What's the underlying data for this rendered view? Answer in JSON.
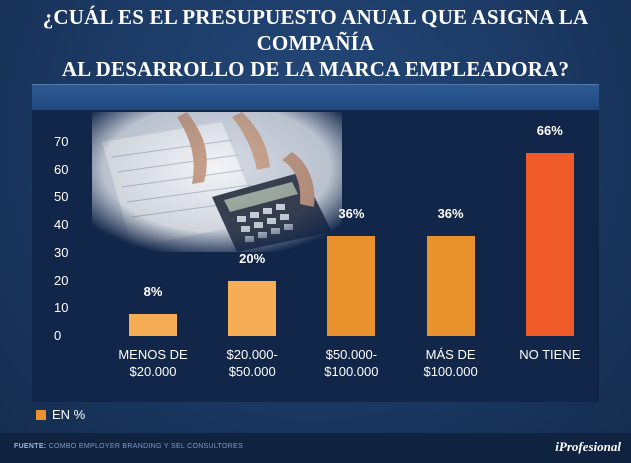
{
  "header": {
    "title_line1": "¿CUÁL ES EL PRESUPUESTO ANUAL QUE ASIGNA LA COMPAÑÍA",
    "title_line2": "AL DESARROLLO DE LA MARCA EMPLEADORA?"
  },
  "chart_data": {
    "type": "bar",
    "title": "¿CUÁL ES EL PRESUPUESTO ANUAL QUE ASIGNA LA COMPAÑÍA AL DESARROLLO DE LA MARCA EMPLEADORA?",
    "categories": [
      [
        "MENOS DE",
        "$20.000"
      ],
      [
        "$20.000-",
        "$50.000"
      ],
      [
        "$50.000-",
        "$100.000"
      ],
      [
        "MÁS DE",
        "$100.000"
      ],
      [
        "NO TIENE"
      ]
    ],
    "values": [
      8,
      20,
      36,
      36,
      66
    ],
    "value_labels": [
      "8%",
      "20%",
      "36%",
      "36%",
      "66%"
    ],
    "bar_colors": [
      "#f7ad55",
      "#f7ad55",
      "#e8922e",
      "#e8922e",
      "#f05a28"
    ],
    "ylim": [
      0,
      70
    ],
    "yticks": [
      "0",
      "10",
      "20",
      "30",
      "40",
      "50",
      "60",
      "70"
    ],
    "xlabel": "",
    "ylabel": "",
    "grid": false
  },
  "legend": {
    "label": "EN %",
    "color": "#e8922e"
  },
  "footer": {
    "source_label": "FUENTE:",
    "source_text": "COMBO EMPLOYER BRANDING Y SEL CONSULTORES",
    "brand": "iProfesional"
  }
}
